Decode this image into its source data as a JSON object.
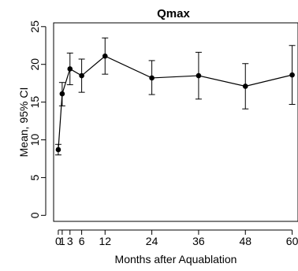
{
  "chart_data": {
    "type": "line",
    "title": "Qmax",
    "xlabel": "Months after Aquablation",
    "ylabel": "Mean, 95% CI",
    "x": [
      0,
      1,
      3,
      6,
      12,
      24,
      36,
      48,
      60
    ],
    "x_tick_labels": [
      "0",
      "1",
      "3",
      "6",
      "12",
      "24",
      "36",
      "48",
      "60"
    ],
    "xlim": [
      -1.2,
      61.5
    ],
    "ylim": [
      -0.8,
      25.5
    ],
    "y_ticks": [
      0,
      5,
      10,
      15,
      20,
      25
    ],
    "y_tick_labels": [
      "0",
      "5",
      "10",
      "15",
      "20",
      "25"
    ],
    "series": [
      {
        "values": [
          8.7,
          16.1,
          19.4,
          18.5,
          21.1,
          18.2,
          18.5,
          17.1,
          18.6
        ],
        "ci_low": [
          8.0,
          14.5,
          17.3,
          16.3,
          18.7,
          16.0,
          15.4,
          14.1,
          14.7
        ],
        "ci_high": [
          9.4,
          17.6,
          21.5,
          20.7,
          23.5,
          20.5,
          21.6,
          20.1,
          22.5
        ]
      }
    ],
    "grid": false,
    "colors": {
      "line": "#000000",
      "marker": "#000000",
      "axis": "#000000"
    }
  }
}
